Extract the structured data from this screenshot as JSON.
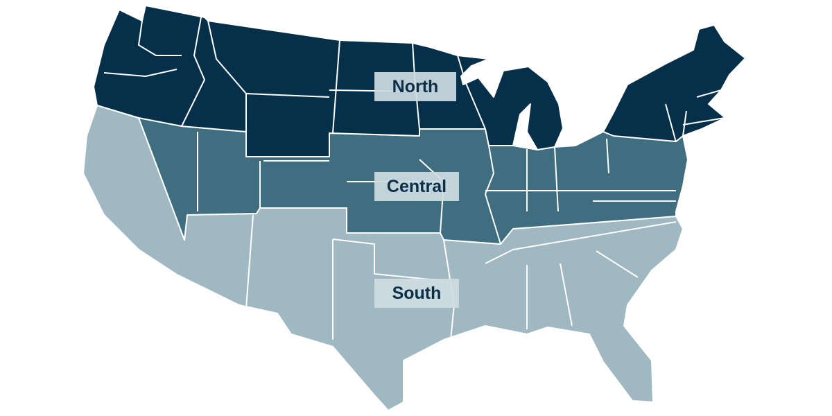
{
  "map": {
    "regions": [
      {
        "id": "north",
        "label": "North",
        "color": "#06304a"
      },
      {
        "id": "central",
        "label": "Central",
        "color": "#3f6e80"
      },
      {
        "id": "south",
        "label": "South",
        "color": "#a0b8c1"
      }
    ],
    "label_box_color": "#cddce2",
    "label_text_color": "#0b2f48",
    "border_color": "#ffffff"
  }
}
